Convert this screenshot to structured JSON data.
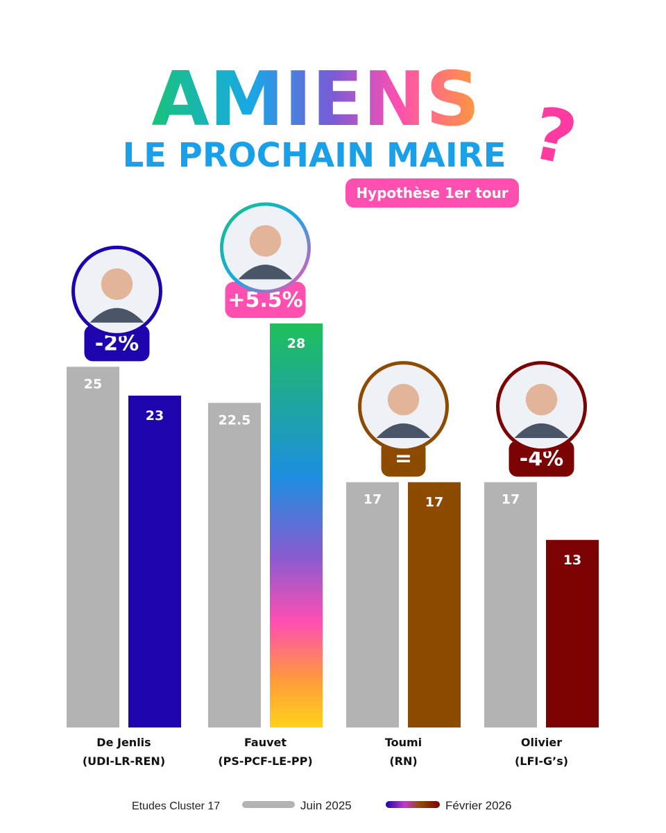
{
  "chart_data": {
    "type": "bar",
    "title_line1": "AMIENS",
    "title_line2": "LE PROCHAIN MAIRE",
    "title_mark": "?",
    "subtitle": "Hypothèse 1er tour",
    "source": "Etudes Cluster 17",
    "ylim": [
      0,
      28
    ],
    "series": [
      {
        "name": "Juin 2025",
        "color": "#b3b3b3",
        "values": [
          25,
          22.5,
          17,
          17
        ]
      },
      {
        "name": "Février 2026",
        "values": [
          23,
          28,
          17,
          13
        ]
      }
    ],
    "candidates": [
      {
        "name": "De Jenlis",
        "party": "(UDI-LR-REN)",
        "change": "-2%",
        "color": "#1e04ad",
        "label_juin": "25",
        "label_fev": "23"
      },
      {
        "name": "Fauvet",
        "party": "(PS-PCF-LE-PP)",
        "change": "+5.5%",
        "color": "#ff4fb0",
        "gradient": true,
        "label_juin": "22.5",
        "label_fev": "28"
      },
      {
        "name": "Toumi",
        "party": "(RN)",
        "change": "=",
        "color": "#8c4b00",
        "label_juin": "17",
        "label_fev": "17"
      },
      {
        "name": "Olivier",
        "party": "(LFI-G’s)",
        "change": "-4%",
        "color": "#7b0303",
        "label_juin": "17",
        "label_fev": "13"
      }
    ]
  }
}
